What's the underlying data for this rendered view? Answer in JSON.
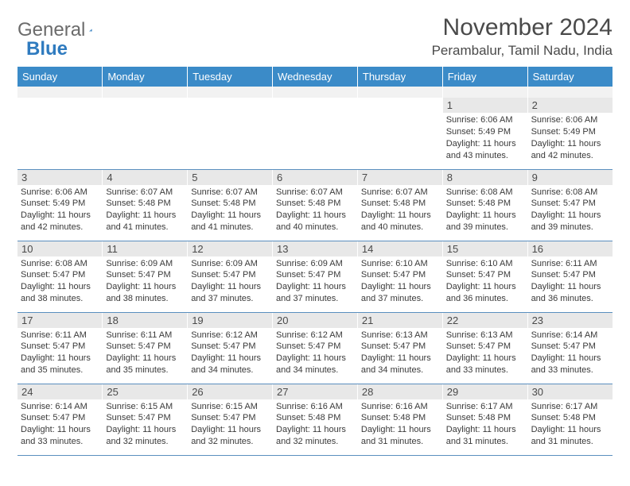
{
  "logo": {
    "text1": "General",
    "text2": "Blue"
  },
  "title": "November 2024",
  "location": "Perambalur, Tamil Nadu, India",
  "colors": {
    "header_bg": "#3b8bc8",
    "header_text": "#ffffff",
    "daynum_bg": "#e8e8e8",
    "cell_border": "#5a8fbf",
    "text": "#3a3a3a",
    "logo_gray": "#6b6b6b",
    "logo_blue": "#2f7bbf"
  },
  "weekdays": [
    "Sunday",
    "Monday",
    "Tuesday",
    "Wednesday",
    "Thursday",
    "Friday",
    "Saturday"
  ],
  "weeks": [
    [
      null,
      null,
      null,
      null,
      null,
      {
        "d": "1",
        "sr": "6:06 AM",
        "ss": "5:49 PM",
        "dl": "11 hours and 43 minutes."
      },
      {
        "d": "2",
        "sr": "6:06 AM",
        "ss": "5:49 PM",
        "dl": "11 hours and 42 minutes."
      }
    ],
    [
      {
        "d": "3",
        "sr": "6:06 AM",
        "ss": "5:49 PM",
        "dl": "11 hours and 42 minutes."
      },
      {
        "d": "4",
        "sr": "6:07 AM",
        "ss": "5:48 PM",
        "dl": "11 hours and 41 minutes."
      },
      {
        "d": "5",
        "sr": "6:07 AM",
        "ss": "5:48 PM",
        "dl": "11 hours and 41 minutes."
      },
      {
        "d": "6",
        "sr": "6:07 AM",
        "ss": "5:48 PM",
        "dl": "11 hours and 40 minutes."
      },
      {
        "d": "7",
        "sr": "6:07 AM",
        "ss": "5:48 PM",
        "dl": "11 hours and 40 minutes."
      },
      {
        "d": "8",
        "sr": "6:08 AM",
        "ss": "5:48 PM",
        "dl": "11 hours and 39 minutes."
      },
      {
        "d": "9",
        "sr": "6:08 AM",
        "ss": "5:47 PM",
        "dl": "11 hours and 39 minutes."
      }
    ],
    [
      {
        "d": "10",
        "sr": "6:08 AM",
        "ss": "5:47 PM",
        "dl": "11 hours and 38 minutes."
      },
      {
        "d": "11",
        "sr": "6:09 AM",
        "ss": "5:47 PM",
        "dl": "11 hours and 38 minutes."
      },
      {
        "d": "12",
        "sr": "6:09 AM",
        "ss": "5:47 PM",
        "dl": "11 hours and 37 minutes."
      },
      {
        "d": "13",
        "sr": "6:09 AM",
        "ss": "5:47 PM",
        "dl": "11 hours and 37 minutes."
      },
      {
        "d": "14",
        "sr": "6:10 AM",
        "ss": "5:47 PM",
        "dl": "11 hours and 37 minutes."
      },
      {
        "d": "15",
        "sr": "6:10 AM",
        "ss": "5:47 PM",
        "dl": "11 hours and 36 minutes."
      },
      {
        "d": "16",
        "sr": "6:11 AM",
        "ss": "5:47 PM",
        "dl": "11 hours and 36 minutes."
      }
    ],
    [
      {
        "d": "17",
        "sr": "6:11 AM",
        "ss": "5:47 PM",
        "dl": "11 hours and 35 minutes."
      },
      {
        "d": "18",
        "sr": "6:11 AM",
        "ss": "5:47 PM",
        "dl": "11 hours and 35 minutes."
      },
      {
        "d": "19",
        "sr": "6:12 AM",
        "ss": "5:47 PM",
        "dl": "11 hours and 34 minutes."
      },
      {
        "d": "20",
        "sr": "6:12 AM",
        "ss": "5:47 PM",
        "dl": "11 hours and 34 minutes."
      },
      {
        "d": "21",
        "sr": "6:13 AM",
        "ss": "5:47 PM",
        "dl": "11 hours and 34 minutes."
      },
      {
        "d": "22",
        "sr": "6:13 AM",
        "ss": "5:47 PM",
        "dl": "11 hours and 33 minutes."
      },
      {
        "d": "23",
        "sr": "6:14 AM",
        "ss": "5:47 PM",
        "dl": "11 hours and 33 minutes."
      }
    ],
    [
      {
        "d": "24",
        "sr": "6:14 AM",
        "ss": "5:47 PM",
        "dl": "11 hours and 33 minutes."
      },
      {
        "d": "25",
        "sr": "6:15 AM",
        "ss": "5:47 PM",
        "dl": "11 hours and 32 minutes."
      },
      {
        "d": "26",
        "sr": "6:15 AM",
        "ss": "5:47 PM",
        "dl": "11 hours and 32 minutes."
      },
      {
        "d": "27",
        "sr": "6:16 AM",
        "ss": "5:48 PM",
        "dl": "11 hours and 32 minutes."
      },
      {
        "d": "28",
        "sr": "6:16 AM",
        "ss": "5:48 PM",
        "dl": "11 hours and 31 minutes."
      },
      {
        "d": "29",
        "sr": "6:17 AM",
        "ss": "5:48 PM",
        "dl": "11 hours and 31 minutes."
      },
      {
        "d": "30",
        "sr": "6:17 AM",
        "ss": "5:48 PM",
        "dl": "11 hours and 31 minutes."
      }
    ]
  ],
  "labels": {
    "sunrise": "Sunrise:",
    "sunset": "Sunset:",
    "daylight": "Daylight:"
  }
}
